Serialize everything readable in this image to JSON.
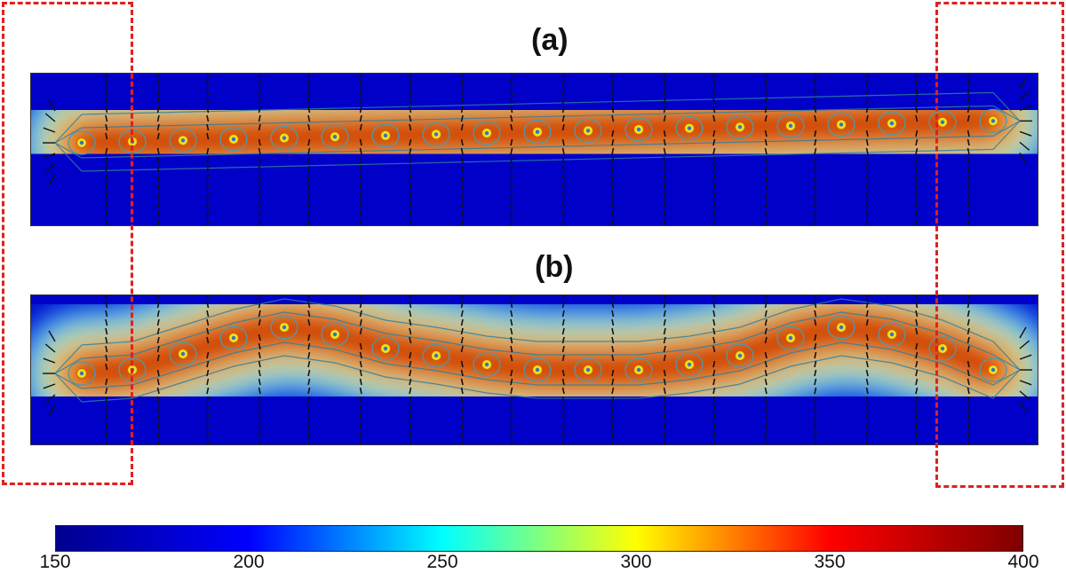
{
  "panels": [
    {
      "label": "(a)",
      "mode": "straight"
    },
    {
      "label": "(b)",
      "mode": "wavy"
    }
  ],
  "colorbar": {
    "ticks": [
      "150",
      "200",
      "250",
      "300",
      "350",
      "400"
    ],
    "min": 150,
    "max": 400,
    "colors": [
      "#00008f",
      "#0000ff",
      "#00ffff",
      "#ffff00",
      "#ff0000",
      "#800000"
    ]
  },
  "highlight_color": "#e02020"
}
